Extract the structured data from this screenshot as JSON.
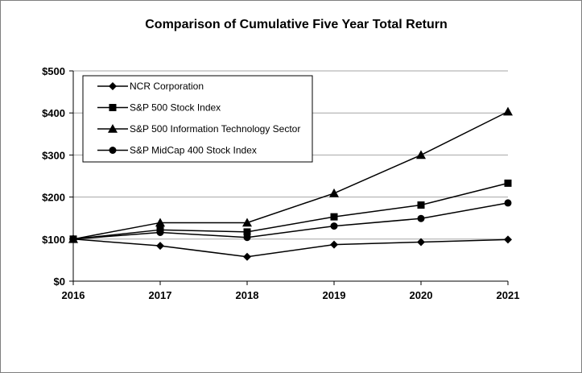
{
  "chart_data": {
    "type": "line",
    "title": "Comparison of Cumulative Five Year Total Return",
    "x": [
      "2016",
      "2017",
      "2018",
      "2019",
      "2020",
      "2021"
    ],
    "ylim": [
      0,
      500
    ],
    "y_ticks": [
      "$0",
      "$100",
      "$200",
      "$300",
      "$400",
      "$500"
    ],
    "grid": true,
    "legend_position": "top-left",
    "series": [
      {
        "name": "NCR Corporation",
        "marker": "diamond",
        "values": [
          100,
          84,
          58,
          87,
          93,
          99
        ]
      },
      {
        "name": "S&P 500 Stock Index",
        "marker": "square",
        "values": [
          100,
          122,
          117,
          153,
          181,
          233
        ]
      },
      {
        "name": "S&P 500 Information Technology Sector",
        "marker": "triangle",
        "values": [
          100,
          139,
          139,
          209,
          300,
          403
        ]
      },
      {
        "name": "S&P MidCap 400 Stock Index",
        "marker": "circle",
        "values": [
          100,
          116,
          104,
          131,
          149,
          186
        ]
      }
    ]
  }
}
